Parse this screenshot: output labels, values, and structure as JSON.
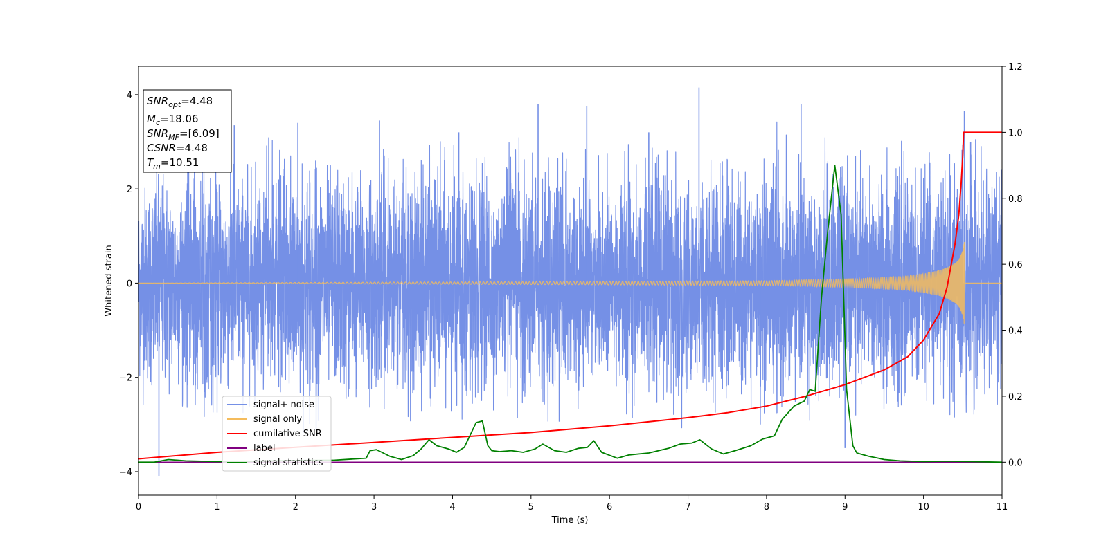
{
  "chart_data": {
    "type": "line",
    "xlabel": "Time (s)",
    "ylabel": "Whitened strain",
    "xlim": [
      0,
      11
    ],
    "ylim_left": [
      -4.5,
      4.6
    ],
    "ylim_right": [
      -0.1,
      1.2
    ],
    "x_ticks": [
      0,
      1,
      2,
      3,
      4,
      5,
      6,
      7,
      8,
      9,
      10,
      11
    ],
    "y_ticks_left": [
      -4,
      -2,
      0,
      2,
      4
    ],
    "y_ticks_right": [
      0.0,
      0.2,
      0.4,
      0.6,
      0.8,
      1.0,
      1.2
    ],
    "x_tick_labels": [
      "0",
      "1",
      "2",
      "3",
      "4",
      "5",
      "6",
      "7",
      "8",
      "9",
      "10",
      "11"
    ],
    "y_tick_labels_left": [
      "−4",
      "−2",
      "0",
      "2",
      "4"
    ],
    "y_tick_labels_right": [
      "0.0",
      "0.2",
      "0.4",
      "0.6",
      "0.8",
      "1.0",
      "1.2"
    ],
    "info_box": {
      "line1_main": "SNR",
      "line1_sub": "opt",
      "line1_value": "=4.48",
      "line2_main": "M",
      "line2_sub": "c",
      "line2_value": "=18.06",
      "line3_main": "SNR",
      "line3_sub": "MF",
      "line3_value": "=[6.09]",
      "line4_main": "CSNR",
      "line4_value": "=4.48",
      "line5_main": "T",
      "line5_sub": "m",
      "line5_value": "=10.51"
    },
    "legend_placement": "lower-left",
    "series": [
      {
        "name": "signal+ noise",
        "color": "#7590e6",
        "axis": "left",
        "envelope_upper": [
          2.5,
          2.9,
          2.6,
          2.9,
          3.0,
          2.6,
          2.8,
          3.2,
          2.7,
          2.9,
          2.9,
          3.1,
          2.7,
          3.0,
          2.6,
          3.1,
          3.0,
          2.9,
          2.8,
          3.0,
          3.2,
          2.7,
          2.9,
          2.8,
          3.0,
          3.3,
          2.9,
          3.1,
          2.8,
          2.7,
          2.9,
          3.0,
          2.8,
          3.6,
          3.0,
          2.9,
          3.2,
          2.8,
          2.9,
          3.0,
          3.1,
          2.8,
          2.9,
          3.0,
          3.3,
          2.7
        ],
        "envelope_lower": [
          -2.6,
          -3.0,
          -2.7,
          -2.9,
          -2.8,
          -3.1,
          -2.7,
          -2.9,
          -3.0,
          -3.3,
          -2.8,
          -2.9,
          -2.7,
          -3.0,
          -3.1,
          -2.8,
          -3.0,
          -2.9,
          -2.7,
          -2.8,
          -3.0,
          -2.9,
          -3.1,
          -2.8,
          -2.7,
          -2.9,
          -3.0,
          -2.8,
          -3.2,
          -2.9,
          -2.8,
          -3.0,
          -2.7,
          -2.9,
          -2.6,
          -3.0,
          -2.8,
          -2.9,
          -3.1,
          -2.7,
          -2.9,
          -3.0,
          -2.8,
          -2.9,
          -2.7,
          -2.6
        ],
        "peaks": [
          [
            0.26,
            -4.1
          ],
          [
            1.22,
            3.35
          ],
          [
            2.03,
            3.4
          ],
          [
            3.07,
            3.45
          ],
          [
            4.08,
            3.2
          ],
          [
            5.09,
            3.8
          ],
          [
            5.71,
            3.75
          ],
          [
            6.5,
            3.2
          ],
          [
            7.14,
            4.15
          ],
          [
            7.92,
            -3.0
          ],
          [
            8.44,
            3.8
          ],
          [
            9.0,
            -3.5
          ],
          [
            10.52,
            3.65
          ],
          [
            10.6,
            3.0
          ]
        ]
      },
      {
        "name": "signal only",
        "color": "#f5bc5c",
        "axis": "left",
        "x": [
          0,
          8.0,
          8.5,
          9.0,
          9.5,
          9.8,
          10.0,
          10.2,
          10.3,
          10.4,
          10.45,
          10.5,
          10.52
        ],
        "amplitude": [
          0.0,
          0.05,
          0.07,
          0.09,
          0.12,
          0.15,
          0.2,
          0.27,
          0.33,
          0.42,
          0.5,
          0.7,
          0.9
        ]
      },
      {
        "name": "cumilative SNR",
        "color": "#ff0000",
        "axis": "right",
        "x": [
          0,
          1,
          2,
          3,
          4,
          5,
          6,
          7,
          7.5,
          8,
          8.5,
          9,
          9.5,
          9.8,
          10.0,
          10.2,
          10.3,
          10.4,
          10.45,
          10.48,
          10.5,
          10.51,
          11
        ],
        "values": [
          0.01,
          0.03,
          0.045,
          0.06,
          0.075,
          0.09,
          0.11,
          0.135,
          0.15,
          0.17,
          0.2,
          0.235,
          0.28,
          0.32,
          0.37,
          0.45,
          0.53,
          0.66,
          0.75,
          0.85,
          0.93,
          1.0,
          1.0
        ]
      },
      {
        "name": "label",
        "color": "#800080",
        "axis": "right",
        "x": [
          0,
          11
        ],
        "values": [
          0.0,
          0.0
        ]
      },
      {
        "name": "signal statistics",
        "color": "#008000",
        "axis": "right",
        "x": [
          0,
          0.2,
          0.38,
          0.6,
          1.0,
          1.5,
          2.0,
          2.5,
          2.9,
          2.95,
          3.03,
          3.1,
          3.2,
          3.35,
          3.5,
          3.6,
          3.7,
          3.8,
          3.95,
          4.05,
          4.15,
          4.3,
          4.38,
          4.45,
          4.5,
          4.6,
          4.75,
          4.9,
          5.05,
          5.15,
          5.3,
          5.45,
          5.6,
          5.72,
          5.8,
          5.9,
          6.1,
          6.25,
          6.5,
          6.75,
          6.9,
          7.05,
          7.15,
          7.3,
          7.45,
          7.6,
          7.8,
          7.95,
          8.1,
          8.2,
          8.35,
          8.48,
          8.55,
          8.62,
          8.7,
          8.78,
          8.87,
          8.95,
          9.02,
          9.1,
          9.15,
          9.3,
          9.5,
          9.7,
          10.0,
          10.3,
          10.6,
          11.0
        ],
        "values": [
          0.0,
          0.0,
          0.008,
          0.004,
          0.002,
          0.003,
          0.005,
          0.006,
          0.012,
          0.035,
          0.038,
          0.03,
          0.018,
          0.008,
          0.02,
          0.04,
          0.068,
          0.05,
          0.04,
          0.03,
          0.045,
          0.12,
          0.125,
          0.05,
          0.035,
          0.032,
          0.035,
          0.03,
          0.04,
          0.055,
          0.035,
          0.03,
          0.042,
          0.045,
          0.065,
          0.03,
          0.012,
          0.022,
          0.028,
          0.042,
          0.055,
          0.058,
          0.068,
          0.04,
          0.025,
          0.035,
          0.05,
          0.07,
          0.08,
          0.13,
          0.17,
          0.185,
          0.22,
          0.215,
          0.5,
          0.7,
          0.9,
          0.75,
          0.22,
          0.05,
          0.028,
          0.018,
          0.008,
          0.004,
          0.002,
          0.003,
          0.002,
          0.0
        ]
      }
    ]
  }
}
